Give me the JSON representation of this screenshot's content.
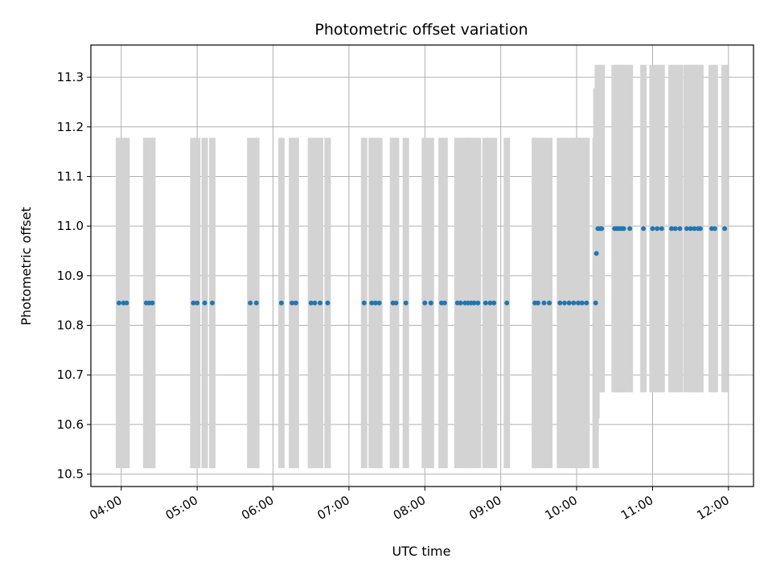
{
  "chart_data": {
    "type": "scatter",
    "title": "Photometric offset variation",
    "xlabel": "UTC time",
    "ylabel": "Photometric offset",
    "x_unit": "hours UTC",
    "xlim": [
      3.6,
      12.33
    ],
    "ylim": [
      10.475,
      11.365
    ],
    "x_ticks": [
      4,
      5,
      6,
      7,
      8,
      9,
      10,
      11,
      12
    ],
    "x_tick_labels": [
      "04:00",
      "05:00",
      "06:00",
      "07:00",
      "08:00",
      "09:00",
      "10:00",
      "11:00",
      "12:00"
    ],
    "y_ticks": [
      10.5,
      10.6,
      10.7,
      10.8,
      10.9,
      11.0,
      11.1,
      11.2,
      11.3
    ],
    "y_tick_labels": [
      "10.5",
      "10.6",
      "10.7",
      "10.8",
      "10.9",
      "11.0",
      "11.1",
      "11.2",
      "11.3"
    ],
    "grid": true,
    "legend": "none",
    "colors": {
      "points": "#1f77b4",
      "errorbars": "#d3d3d3",
      "grid": "#b0b0b0"
    },
    "points": [
      {
        "x": 3.97,
        "y": 10.845,
        "err": 0.333
      },
      {
        "x": 4.03,
        "y": 10.845,
        "err": 0.333
      },
      {
        "x": 4.07,
        "y": 10.845,
        "err": 0.333
      },
      {
        "x": 4.33,
        "y": 10.845,
        "err": 0.333
      },
      {
        "x": 4.37,
        "y": 10.845,
        "err": 0.333
      },
      {
        "x": 4.41,
        "y": 10.845,
        "err": 0.333
      },
      {
        "x": 4.95,
        "y": 10.845,
        "err": 0.333
      },
      {
        "x": 5.0,
        "y": 10.845,
        "err": 0.333
      },
      {
        "x": 5.1,
        "y": 10.845,
        "err": 0.333
      },
      {
        "x": 5.2,
        "y": 10.845,
        "err": 0.333
      },
      {
        "x": 5.7,
        "y": 10.845,
        "err": 0.333
      },
      {
        "x": 5.78,
        "y": 10.845,
        "err": 0.333
      },
      {
        "x": 6.11,
        "y": 10.845,
        "err": 0.333
      },
      {
        "x": 6.25,
        "y": 10.845,
        "err": 0.333
      },
      {
        "x": 6.3,
        "y": 10.845,
        "err": 0.333
      },
      {
        "x": 6.5,
        "y": 10.845,
        "err": 0.333
      },
      {
        "x": 6.55,
        "y": 10.845,
        "err": 0.333
      },
      {
        "x": 6.62,
        "y": 10.845,
        "err": 0.333
      },
      {
        "x": 6.72,
        "y": 10.845,
        "err": 0.333
      },
      {
        "x": 7.2,
        "y": 10.845,
        "err": 0.333
      },
      {
        "x": 7.3,
        "y": 10.845,
        "err": 0.333
      },
      {
        "x": 7.35,
        "y": 10.845,
        "err": 0.333
      },
      {
        "x": 7.4,
        "y": 10.845,
        "err": 0.333
      },
      {
        "x": 7.58,
        "y": 10.845,
        "err": 0.333
      },
      {
        "x": 7.62,
        "y": 10.845,
        "err": 0.333
      },
      {
        "x": 7.75,
        "y": 10.845,
        "err": 0.333
      },
      {
        "x": 8.0,
        "y": 10.845,
        "err": 0.333
      },
      {
        "x": 8.08,
        "y": 10.845,
        "err": 0.333
      },
      {
        "x": 8.22,
        "y": 10.845,
        "err": 0.333
      },
      {
        "x": 8.26,
        "y": 10.845,
        "err": 0.333
      },
      {
        "x": 8.43,
        "y": 10.845,
        "err": 0.333
      },
      {
        "x": 8.47,
        "y": 10.845,
        "err": 0.333
      },
      {
        "x": 8.53,
        "y": 10.845,
        "err": 0.333
      },
      {
        "x": 8.57,
        "y": 10.845,
        "err": 0.333
      },
      {
        "x": 8.61,
        "y": 10.845,
        "err": 0.333
      },
      {
        "x": 8.65,
        "y": 10.845,
        "err": 0.333
      },
      {
        "x": 8.7,
        "y": 10.845,
        "err": 0.333
      },
      {
        "x": 8.8,
        "y": 10.845,
        "err": 0.333
      },
      {
        "x": 8.86,
        "y": 10.845,
        "err": 0.333
      },
      {
        "x": 8.91,
        "y": 10.845,
        "err": 0.333
      },
      {
        "x": 9.08,
        "y": 10.845,
        "err": 0.333
      },
      {
        "x": 9.45,
        "y": 10.845,
        "err": 0.333
      },
      {
        "x": 9.49,
        "y": 10.845,
        "err": 0.333
      },
      {
        "x": 9.57,
        "y": 10.845,
        "err": 0.333
      },
      {
        "x": 9.64,
        "y": 10.845,
        "err": 0.333
      },
      {
        "x": 9.78,
        "y": 10.845,
        "err": 0.333
      },
      {
        "x": 9.84,
        "y": 10.845,
        "err": 0.333
      },
      {
        "x": 9.9,
        "y": 10.845,
        "err": 0.333
      },
      {
        "x": 9.96,
        "y": 10.845,
        "err": 0.333
      },
      {
        "x": 10.02,
        "y": 10.845,
        "err": 0.333
      },
      {
        "x": 10.07,
        "y": 10.845,
        "err": 0.333
      },
      {
        "x": 10.13,
        "y": 10.845,
        "err": 0.333
      },
      {
        "x": 10.25,
        "y": 10.845,
        "err": 0.333
      },
      {
        "x": 10.26,
        "y": 10.945,
        "err": 0.333
      },
      {
        "x": 10.28,
        "y": 10.995,
        "err": 0.33
      },
      {
        "x": 10.31,
        "y": 10.995,
        "err": 0.33
      },
      {
        "x": 10.33,
        "y": 10.995,
        "err": 0.33
      },
      {
        "x": 10.5,
        "y": 10.995,
        "err": 0.33
      },
      {
        "x": 10.53,
        "y": 10.995,
        "err": 0.33
      },
      {
        "x": 10.56,
        "y": 10.995,
        "err": 0.33
      },
      {
        "x": 10.59,
        "y": 10.995,
        "err": 0.33
      },
      {
        "x": 10.62,
        "y": 10.995,
        "err": 0.33
      },
      {
        "x": 10.7,
        "y": 10.995,
        "err": 0.33
      },
      {
        "x": 10.88,
        "y": 10.995,
        "err": 0.33
      },
      {
        "x": 11.0,
        "y": 10.995,
        "err": 0.33
      },
      {
        "x": 11.06,
        "y": 10.995,
        "err": 0.33
      },
      {
        "x": 11.12,
        "y": 10.995,
        "err": 0.33
      },
      {
        "x": 11.25,
        "y": 10.995,
        "err": 0.33
      },
      {
        "x": 11.3,
        "y": 10.995,
        "err": 0.33
      },
      {
        "x": 11.36,
        "y": 10.995,
        "err": 0.33
      },
      {
        "x": 11.45,
        "y": 10.995,
        "err": 0.33
      },
      {
        "x": 11.5,
        "y": 10.995,
        "err": 0.33
      },
      {
        "x": 11.55,
        "y": 10.995,
        "err": 0.33
      },
      {
        "x": 11.6,
        "y": 10.995,
        "err": 0.33
      },
      {
        "x": 11.63,
        "y": 10.995,
        "err": 0.33
      },
      {
        "x": 11.78,
        "y": 10.995,
        "err": 0.33
      },
      {
        "x": 11.82,
        "y": 10.995,
        "err": 0.33
      },
      {
        "x": 11.95,
        "y": 10.995,
        "err": 0.33
      }
    ]
  }
}
